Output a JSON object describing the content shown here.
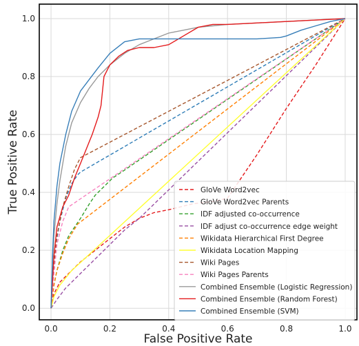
{
  "chart_data": {
    "type": "line",
    "title": "",
    "xlabel": "False Positive Rate",
    "ylabel": "True Positive Rate",
    "xlim": [
      -0.04,
      1.04
    ],
    "ylim": [
      -0.04,
      1.05
    ],
    "xticks": [
      "0.0",
      "0.2",
      "0.4",
      "0.6",
      "0.8",
      "1.0"
    ],
    "yticks": [
      "0.0",
      "0.2",
      "0.4",
      "0.6",
      "0.8",
      "1.0"
    ],
    "grid": true,
    "legend_position": "bottom-right",
    "series": [
      {
        "name": "GloVe Word2vec",
        "color": "#e41a1c",
        "dash": "dashed",
        "x": [
          0,
          0.01,
          0.03,
          0.06,
          0.1,
          0.15,
          0.2,
          0.25,
          0.3,
          0.35,
          0.4,
          0.48,
          0.56,
          0.6,
          0.7,
          0.8,
          0.9,
          1.0
        ],
        "y": [
          0,
          0.05,
          0.09,
          0.12,
          0.16,
          0.2,
          0.24,
          0.28,
          0.31,
          0.33,
          0.34,
          0.36,
          0.37,
          0.38,
          0.53,
          0.69,
          0.84,
          1.0
        ]
      },
      {
        "name": "GloVe Word2vec Parents",
        "color": "#2c7bb6",
        "dash": "dashed",
        "x": [
          0,
          0.01,
          0.03,
          0.05,
          0.07,
          0.09,
          0.1,
          1.0
        ],
        "y": [
          0,
          0.18,
          0.3,
          0.38,
          0.43,
          0.46,
          0.47,
          1.0
        ]
      },
      {
        "name": "IDF adjusted co-occurrence",
        "color": "#33a02c",
        "dash": "dashed",
        "x": [
          0,
          0.01,
          0.02,
          0.04,
          0.06,
          0.08,
          0.1,
          0.13,
          0.15,
          0.18,
          0.21,
          0.24,
          1.0
        ],
        "y": [
          0,
          0.08,
          0.13,
          0.2,
          0.25,
          0.28,
          0.31,
          0.36,
          0.39,
          0.42,
          0.45,
          0.47,
          1.0
        ]
      },
      {
        "name": "IDF adjust co-occurrence edge weight",
        "color": "#984ea3",
        "dash": "dashed",
        "x": [
          0,
          0.02,
          0.05,
          0.1,
          0.15,
          0.2,
          0.25,
          0.3,
          1.0
        ],
        "y": [
          0,
          0.03,
          0.07,
          0.12,
          0.17,
          0.22,
          0.27,
          0.31,
          1.0
        ]
      },
      {
        "name": "Wikidata Hierarchical First Degree",
        "color": "#ff7f00",
        "dash": "dashed",
        "x": [
          0,
          0.01,
          0.02,
          0.04,
          0.06,
          0.09,
          1.0
        ],
        "y": [
          0,
          0.08,
          0.13,
          0.19,
          0.24,
          0.29,
          1.0
        ]
      },
      {
        "name": "Wikidata Location Mapping",
        "color": "#ffff33",
        "dash": "solid",
        "x": [
          0,
          0.01,
          0.03,
          0.07,
          1.0
        ],
        "y": [
          0,
          0.04,
          0.08,
          0.13,
          1.0
        ]
      },
      {
        "name": "Wiki Pages",
        "color": "#a6562c",
        "dash": "dashed",
        "x": [
          0,
          0.01,
          0.02,
          0.04,
          0.06,
          0.08,
          0.1,
          1.0
        ],
        "y": [
          0,
          0.15,
          0.25,
          0.35,
          0.42,
          0.48,
          0.52,
          1.0
        ]
      },
      {
        "name": "Wiki Pages Parents",
        "color": "#f781bf",
        "dash": "dashed",
        "x": [
          0,
          0.01,
          0.02,
          0.04,
          0.06,
          1.0
        ],
        "y": [
          0,
          0.12,
          0.22,
          0.3,
          0.35,
          1.0
        ]
      },
      {
        "name": "Combined Ensemble (Logistic Regression)",
        "color": "#999999",
        "dash": "solid",
        "x": [
          0,
          0.005,
          0.01,
          0.02,
          0.03,
          0.05,
          0.07,
          0.1,
          0.13,
          0.16,
          0.2,
          0.25,
          0.3,
          0.35,
          0.4,
          0.45,
          0.5,
          0.55,
          0.6,
          0.7,
          0.8,
          0.9,
          1.0
        ],
        "y": [
          0,
          0.15,
          0.25,
          0.36,
          0.44,
          0.56,
          0.64,
          0.71,
          0.76,
          0.8,
          0.84,
          0.88,
          0.91,
          0.93,
          0.95,
          0.96,
          0.97,
          0.975,
          0.98,
          0.985,
          0.99,
          0.995,
          1.0
        ]
      },
      {
        "name": "Combined Ensemble (Random Forest)",
        "color": "#e41a1c",
        "dash": "solid",
        "x": [
          0,
          0.01,
          0.02,
          0.04,
          0.06,
          0.08,
          0.1,
          0.12,
          0.14,
          0.16,
          0.17,
          0.18,
          0.2,
          0.23,
          0.26,
          0.3,
          0.35,
          0.4,
          0.45,
          0.5,
          0.55,
          0.6,
          0.7,
          0.8,
          0.9,
          1.0
        ],
        "y": [
          0,
          0.18,
          0.28,
          0.35,
          0.39,
          0.45,
          0.5,
          0.55,
          0.6,
          0.66,
          0.7,
          0.8,
          0.84,
          0.87,
          0.89,
          0.9,
          0.9,
          0.91,
          0.94,
          0.97,
          0.98,
          0.98,
          0.985,
          0.99,
          0.995,
          1.0
        ]
      },
      {
        "name": "Combined Ensemble (SVM)",
        "color": "#377eb8",
        "dash": "solid",
        "x": [
          0,
          0.005,
          0.01,
          0.02,
          0.03,
          0.05,
          0.07,
          0.1,
          0.13,
          0.16,
          0.2,
          0.25,
          0.3,
          0.4,
          0.5,
          0.6,
          0.7,
          0.78,
          0.8,
          0.85,
          0.9,
          0.95,
          1.0
        ],
        "y": [
          0,
          0.18,
          0.3,
          0.42,
          0.5,
          0.6,
          0.68,
          0.75,
          0.79,
          0.83,
          0.88,
          0.92,
          0.93,
          0.93,
          0.93,
          0.93,
          0.93,
          0.935,
          0.94,
          0.96,
          0.975,
          0.99,
          1.0
        ]
      }
    ]
  }
}
